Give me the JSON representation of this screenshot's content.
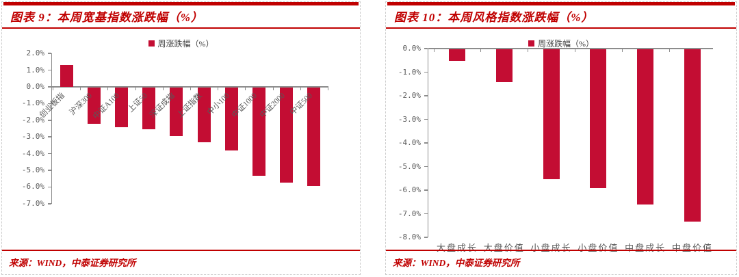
{
  "colors": {
    "accent_red": "#C00000",
    "bar": "#C30D33",
    "axis_line": "#8C8C8C",
    "axis_text": "#595959",
    "panel_border": "#CCCCCC"
  },
  "panels": [
    {
      "title": "图表 9：本周宽基指数涨跌幅（%）",
      "legend": "周涨跌幅（%）",
      "source": "来源：WIND，中泰证券研究所"
    },
    {
      "title": "图表 10：本周风格指数涨跌幅（%）",
      "legend": "周涨跌幅（%）",
      "source": "来源：WIND，中泰证券研究所"
    }
  ],
  "chart_data": [
    {
      "type": "bar",
      "title": "本周宽基指数涨跌幅（%）",
      "legend": [
        "周涨跌幅（%）"
      ],
      "legend_position": "top-center",
      "categories": [
        "创业板指",
        "沪深300",
        "中证A100",
        "上证50",
        "深证成指",
        "上证指数",
        "中小100",
        "中证1000",
        "中证2000",
        "中证500"
      ],
      "values": [
        1.3,
        -2.2,
        -2.4,
        -2.5,
        -2.9,
        -3.3,
        -3.8,
        -5.3,
        -5.7,
        -5.9
      ],
      "unit": "%",
      "ylim": [
        -7,
        2
      ],
      "ytick_step": 1,
      "grid": false,
      "xlabel_rotation": -45
    },
    {
      "type": "bar",
      "title": "本周风格指数涨跌幅（%）",
      "legend": [
        "周涨跌幅（%）"
      ],
      "legend_position": "top-center",
      "categories": [
        "大盘成长",
        "大盘价值",
        "小盘成长",
        "小盘价值",
        "中盘成长",
        "中盘价值"
      ],
      "values": [
        -0.5,
        -1.4,
        -5.5,
        -5.9,
        -6.6,
        -7.3
      ],
      "unit": "%",
      "ylim": [
        -8,
        0
      ],
      "ytick_step": 1,
      "grid": false,
      "xlabel_rotation": 0
    }
  ]
}
